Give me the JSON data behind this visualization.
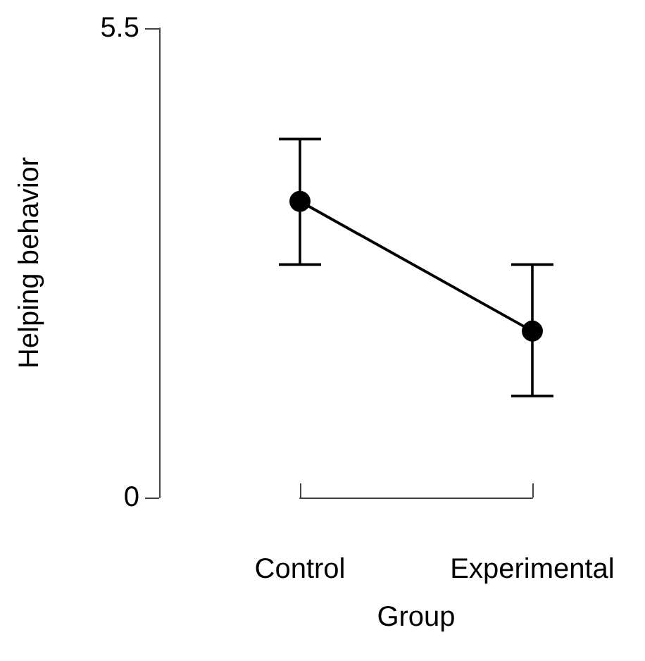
{
  "chart_data": {
    "type": "line",
    "xlabel": "Group",
    "ylabel": "Helping behavior",
    "categories": [
      "Control",
      "Experimental"
    ],
    "series": [
      {
        "color": "#000000",
        "values": [
          3.47,
          1.95
        ],
        "errors": [
          [
            2.73,
            4.2
          ],
          [
            1.19,
            2.73
          ]
        ]
      }
    ],
    "ylim": [
      0,
      5.5
    ],
    "yticks": [
      0,
      5.5
    ],
    "grid": false,
    "marker": "circle",
    "line_style": "solid"
  }
}
